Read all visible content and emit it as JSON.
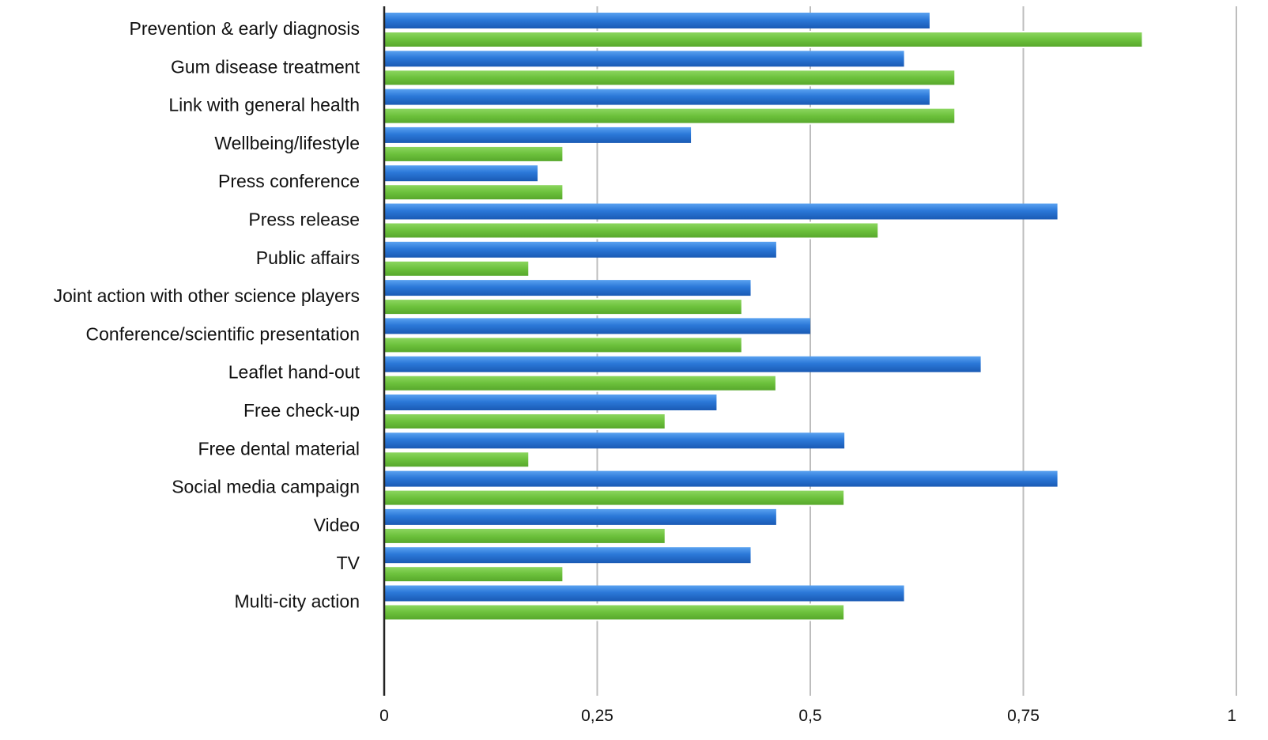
{
  "chart_data": {
    "type": "bar",
    "orientation": "horizontal",
    "title": "",
    "xlabel": "",
    "ylabel": "",
    "xlim": [
      0,
      1
    ],
    "grid": true,
    "legend": "none",
    "categories": [
      "Prevention & early diagnosis",
      "Gum disease treatment",
      "Link with general health",
      "Wellbeing/lifestyle",
      "Press conference",
      "Press release",
      "Public affairs",
      "Joint action with other science players",
      "Conference/scientific presentation",
      "Leaflet hand-out",
      "Free check-up",
      "Free dental material",
      "Social media campaign",
      "Video",
      "TV",
      "Multi-city action"
    ],
    "series": [
      {
        "color": "#2b78d8",
        "values": [
          0.64,
          0.61,
          0.64,
          0.36,
          0.18,
          0.79,
          0.46,
          0.43,
          0.5,
          0.7,
          0.39,
          0.54,
          0.79,
          0.46,
          0.43,
          0.61
        ]
      },
      {
        "color": "#6cc13c",
        "values": [
          0.89,
          0.67,
          0.67,
          0.21,
          0.21,
          0.58,
          0.17,
          0.42,
          0.42,
          0.46,
          0.33,
          0.17,
          0.54,
          0.33,
          0.21,
          0.54
        ]
      }
    ],
    "x_ticks": [
      "0",
      "0,25",
      "0,5",
      "0,75",
      "1"
    ],
    "x_tick_values": [
      0,
      0.25,
      0.5,
      0.75,
      1
    ]
  }
}
